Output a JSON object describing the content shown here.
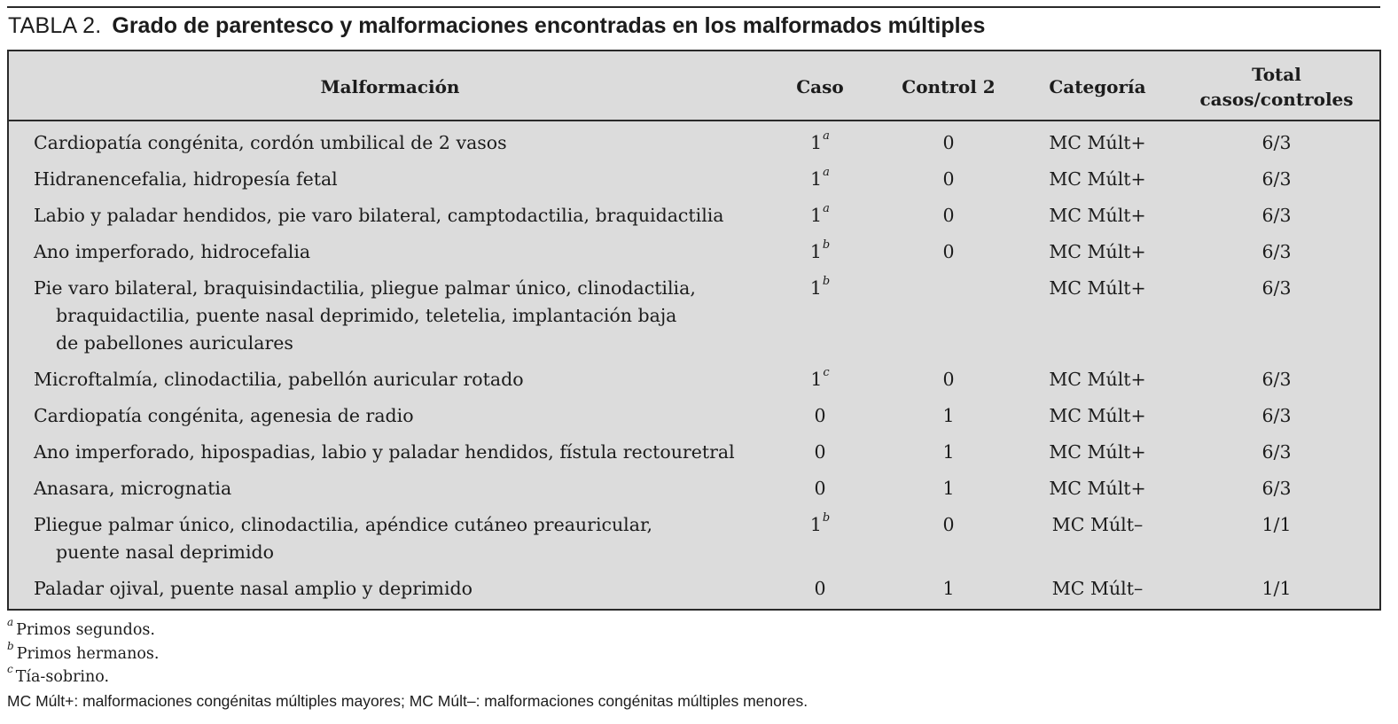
{
  "title": {
    "label": "TABLA 2.",
    "text": "Grado de parentesco y malformaciones encontradas en los malformados múltiples"
  },
  "headers": {
    "malformacion": "Malformación",
    "caso": "Caso",
    "control": "Control 2",
    "categoria": "Categoría",
    "total_line1": "Total",
    "total_line2": "casos/controles"
  },
  "rows": [
    {
      "lines": [
        "Cardiopatía congénita, cordón umbilical de 2 vasos"
      ],
      "caso": "1",
      "caso_sup": "a",
      "control": "0",
      "categoria": "MC Múlt+",
      "total": "6/3"
    },
    {
      "lines": [
        "Hidranencefalia, hidropesía fetal"
      ],
      "caso": "1",
      "caso_sup": "a",
      "control": "0",
      "categoria": "MC Múlt+",
      "total": "6/3"
    },
    {
      "lines": [
        "Labio y paladar hendidos, pie varo bilateral, camptodactilia, braquidactilia"
      ],
      "caso": "1",
      "caso_sup": "a",
      "control": "0",
      "categoria": "MC Múlt+",
      "total": "6/3"
    },
    {
      "lines": [
        "Ano imperforado, hidrocefalia"
      ],
      "caso": "1",
      "caso_sup": "b",
      "control": "0",
      "categoria": "MC Múlt+",
      "total": "6/3"
    },
    {
      "lines": [
        "Pie varo bilateral, braquisindactilia, pliegue palmar único, clinodactilia,",
        "braquidactilia, puente nasal deprimido, teletelia, implantación baja",
        "de pabellones auriculares"
      ],
      "caso": "1",
      "caso_sup": "b",
      "control": "",
      "categoria": "MC Múlt+",
      "total": "6/3"
    },
    {
      "lines": [
        "Microftalmía, clinodactilia, pabellón auricular rotado"
      ],
      "caso": "1",
      "caso_sup": "c",
      "control": "0",
      "categoria": "MC Múlt+",
      "total": "6/3"
    },
    {
      "lines": [
        "Cardiopatía congénita, agenesia de radio"
      ],
      "caso": "0",
      "caso_sup": "",
      "control": "1",
      "categoria": "MC Múlt+",
      "total": "6/3"
    },
    {
      "lines": [
        "Ano imperforado, hipospadias, labio y paladar hendidos, fístula rectouretral"
      ],
      "caso": "0",
      "caso_sup": "",
      "control": "1",
      "categoria": "MC Múlt+",
      "total": "6/3"
    },
    {
      "lines": [
        "Anasara, micrognatia"
      ],
      "caso": "0",
      "caso_sup": "",
      "control": "1",
      "categoria": "MC Múlt+",
      "total": "6/3"
    },
    {
      "lines": [
        "Pliegue palmar único, clinodactilia, apéndice cutáneo preauricular,",
        "puente nasal deprimido"
      ],
      "caso": "1",
      "caso_sup": "b",
      "control": "0",
      "categoria": "MC Múlt–",
      "total": "1/1"
    },
    {
      "lines": [
        "Paladar ojival, puente nasal amplio y deprimido"
      ],
      "caso": "0",
      "caso_sup": "",
      "control": "1",
      "categoria": "MC Múlt–",
      "total": "1/1"
    }
  ],
  "footnotes": {
    "a": {
      "mark": "a",
      "text": "Primos segundos."
    },
    "b": {
      "mark": "b",
      "text": "Primos hermanos."
    },
    "c": {
      "mark": "c",
      "text": "Tía-sobrino."
    },
    "abbrev": "MC Múlt+: malformaciones congénitas múltiples mayores; MC Múlt–: malformaciones congénitas múltiples menores."
  }
}
